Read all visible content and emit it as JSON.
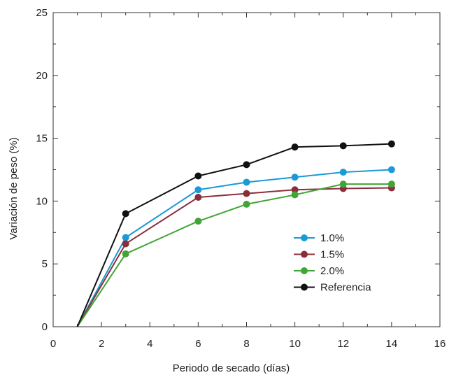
{
  "chart_data": {
    "type": "line",
    "title": "",
    "xlabel": "Periodo de secado (días)",
    "ylabel": "Variación de peso (%)",
    "xlim": [
      0,
      16
    ],
    "ylim": [
      0,
      25
    ],
    "x_ticks": [
      0,
      2,
      4,
      6,
      8,
      10,
      12,
      14,
      16
    ],
    "y_ticks": [
      0,
      5,
      10,
      15,
      20,
      25
    ],
    "grid": false,
    "legend_position": "center-right",
    "series": [
      {
        "name": "1.0%",
        "color": "#1a9ad6",
        "points": [
          [
            1,
            0
          ],
          [
            3,
            7.1
          ],
          [
            6,
            10.9
          ],
          [
            8,
            11.5
          ],
          [
            10,
            11.9
          ],
          [
            12,
            12.3
          ],
          [
            14,
            12.5
          ]
        ]
      },
      {
        "name": "1.5%",
        "color": "#8b2e3c",
        "points": [
          [
            1,
            0
          ],
          [
            3,
            6.6
          ],
          [
            6,
            10.3
          ],
          [
            8,
            10.6
          ],
          [
            10,
            10.9
          ],
          [
            12,
            11.0
          ],
          [
            14,
            11.05
          ]
        ]
      },
      {
        "name": "2.0%",
        "color": "#3fa535",
        "points": [
          [
            1,
            0
          ],
          [
            3,
            5.8
          ],
          [
            6,
            8.4
          ],
          [
            8,
            9.75
          ],
          [
            10,
            10.5
          ],
          [
            12,
            11.35
          ],
          [
            14,
            11.35
          ]
        ]
      },
      {
        "name": "Referencia",
        "color": "#111111",
        "points": [
          [
            1,
            0
          ],
          [
            3,
            9.0
          ],
          [
            6,
            12.0
          ],
          [
            8,
            12.9
          ],
          [
            10,
            14.3
          ],
          [
            12,
            14.4
          ],
          [
            14,
            14.55
          ]
        ]
      }
    ]
  }
}
